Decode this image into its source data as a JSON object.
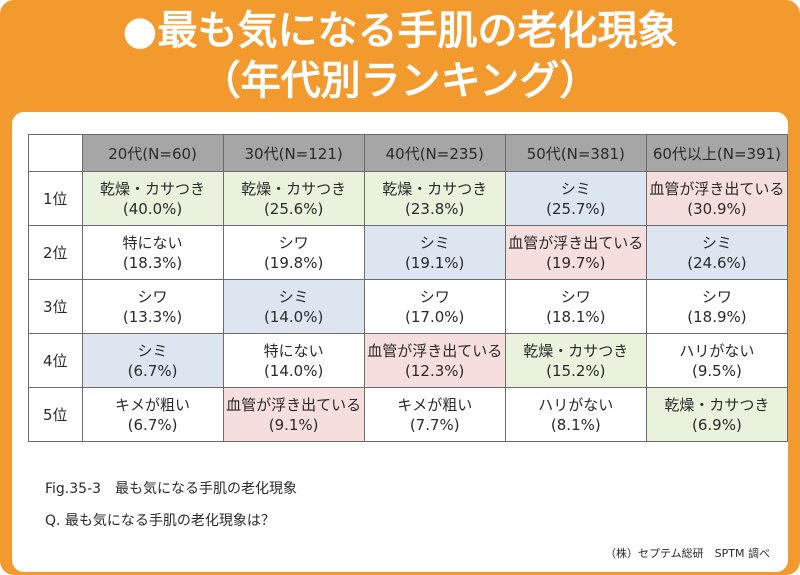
{
  "title_line1": "●最も気になる手肌の老化現象",
  "title_line2": "（年代別ランキング）",
  "caption_fig": "Fig.35-3　最も気になる手肌の老化現象",
  "caption_q": "Q. 最も気になる手肌の老化現象は？",
  "source": "（株）セプテム総研　SPTM 調べ",
  "colors": {
    "frame": "#f29a2e",
    "header": "#a6a6a6",
    "乾燥・カサつき": "#e9f2dd",
    "シミ": "#dde5f1",
    "血管が浮き出ている": "#f6dede"
  },
  "chart_data": {
    "type": "table",
    "columns": [
      "20代(N=60)",
      "30代(N=121)",
      "40代(N=235)",
      "50代(N=381)",
      "60代以上(N=391)"
    ],
    "rows": [
      {
        "rank": "1位",
        "cells": [
          {
            "label": "乾燥・カサつき",
            "value": "(40.0%)"
          },
          {
            "label": "乾燥・カサつき",
            "value": "(25.6%)"
          },
          {
            "label": "乾燥・カサつき",
            "value": "(23.8%)"
          },
          {
            "label": "シミ",
            "value": "(25.7%)"
          },
          {
            "label": "血管が浮き出ている",
            "value": "(30.9%)"
          }
        ]
      },
      {
        "rank": "2位",
        "cells": [
          {
            "label": "特にない",
            "value": "(18.3%)"
          },
          {
            "label": "シワ",
            "value": "(19.8%)"
          },
          {
            "label": "シミ",
            "value": "(19.1%)"
          },
          {
            "label": "血管が浮き出ている",
            "value": "(19.7%)"
          },
          {
            "label": "シミ",
            "value": "(24.6%)"
          }
        ]
      },
      {
        "rank": "3位",
        "cells": [
          {
            "label": "シワ",
            "value": "(13.3%)"
          },
          {
            "label": "シミ",
            "value": "(14.0%)"
          },
          {
            "label": "シワ",
            "value": "(17.0%)"
          },
          {
            "label": "シワ",
            "value": "(18.1%)"
          },
          {
            "label": "シワ",
            "value": "(18.9%)"
          }
        ]
      },
      {
        "rank": "4位",
        "cells": [
          {
            "label": "シミ",
            "value": "(6.7%)"
          },
          {
            "label": "特にない",
            "value": "(14.0%)"
          },
          {
            "label": "血管が浮き出ている",
            "value": "(12.3%)"
          },
          {
            "label": "乾燥・カサつき",
            "value": "(15.2%)"
          },
          {
            "label": "ハリがない",
            "value": "(9.5%)"
          }
        ]
      },
      {
        "rank": "5位",
        "cells": [
          {
            "label": "キメが粗い",
            "value": "(6.7%)"
          },
          {
            "label": "血管が浮き出ている",
            "value": "(9.1%)"
          },
          {
            "label": "キメが粗い",
            "value": "(7.7%)"
          },
          {
            "label": "ハリがない",
            "value": "(8.1%)"
          },
          {
            "label": "乾燥・カサつき",
            "value": "(6.9%)"
          }
        ]
      }
    ]
  }
}
